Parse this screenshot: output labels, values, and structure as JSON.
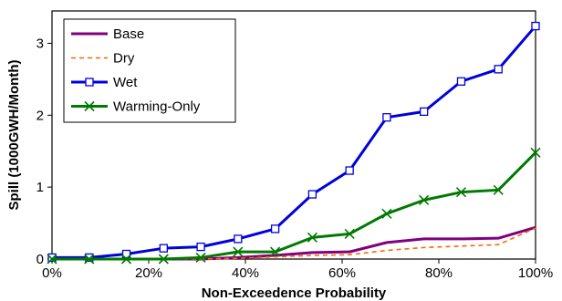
{
  "chart_data": {
    "type": "line",
    "xlabel": "Non-Exceedence Probability",
    "ylabel": "Spill (1000GWH/Month)",
    "xlim": [
      0,
      100
    ],
    "ylim": [
      0,
      3.45
    ],
    "x_ticks": [
      0,
      20,
      40,
      60,
      80,
      100
    ],
    "x_tick_labels": [
      "0%",
      "20%",
      "40%",
      "60%",
      "80%",
      "100%"
    ],
    "y_ticks": [
      0,
      1,
      2,
      3
    ],
    "y_tick_labels": [
      "0",
      "1",
      "2",
      "3"
    ],
    "grid": false,
    "legend_position": "top-left",
    "x": [
      0,
      7.69,
      15.38,
      23.08,
      30.77,
      38.46,
      46.15,
      53.85,
      61.54,
      69.23,
      76.92,
      84.62,
      92.31,
      100
    ],
    "series": [
      {
        "name": "Base",
        "color": "#800080",
        "line_style": "solid",
        "marker": "none",
        "values": [
          0,
          0,
          0,
          0,
          0,
          0.02,
          0.05,
          0.09,
          0.1,
          0.23,
          0.28,
          0.28,
          0.29,
          0.44
        ]
      },
      {
        "name": "Dry",
        "color": "#ff6600",
        "line_style": "dashed",
        "marker": "none",
        "values": [
          0,
          0,
          0,
          0,
          0,
          0.01,
          0.03,
          0.05,
          0.06,
          0.12,
          0.16,
          0.18,
          0.2,
          0.43
        ]
      },
      {
        "name": "Wet",
        "color": "#0000dd",
        "line_style": "solid",
        "marker": "square",
        "values": [
          0.02,
          0.02,
          0.07,
          0.15,
          0.17,
          0.28,
          0.42,
          0.9,
          1.23,
          1.97,
          2.05,
          2.47,
          2.64,
          3.24
        ]
      },
      {
        "name": "Warming-Only",
        "color": "#007a00",
        "line_style": "solid",
        "marker": "x",
        "values": [
          0,
          0,
          0,
          0,
          0.02,
          0.1,
          0.1,
          0.3,
          0.35,
          0.63,
          0.82,
          0.93,
          0.96,
          1.48
        ]
      }
    ]
  }
}
